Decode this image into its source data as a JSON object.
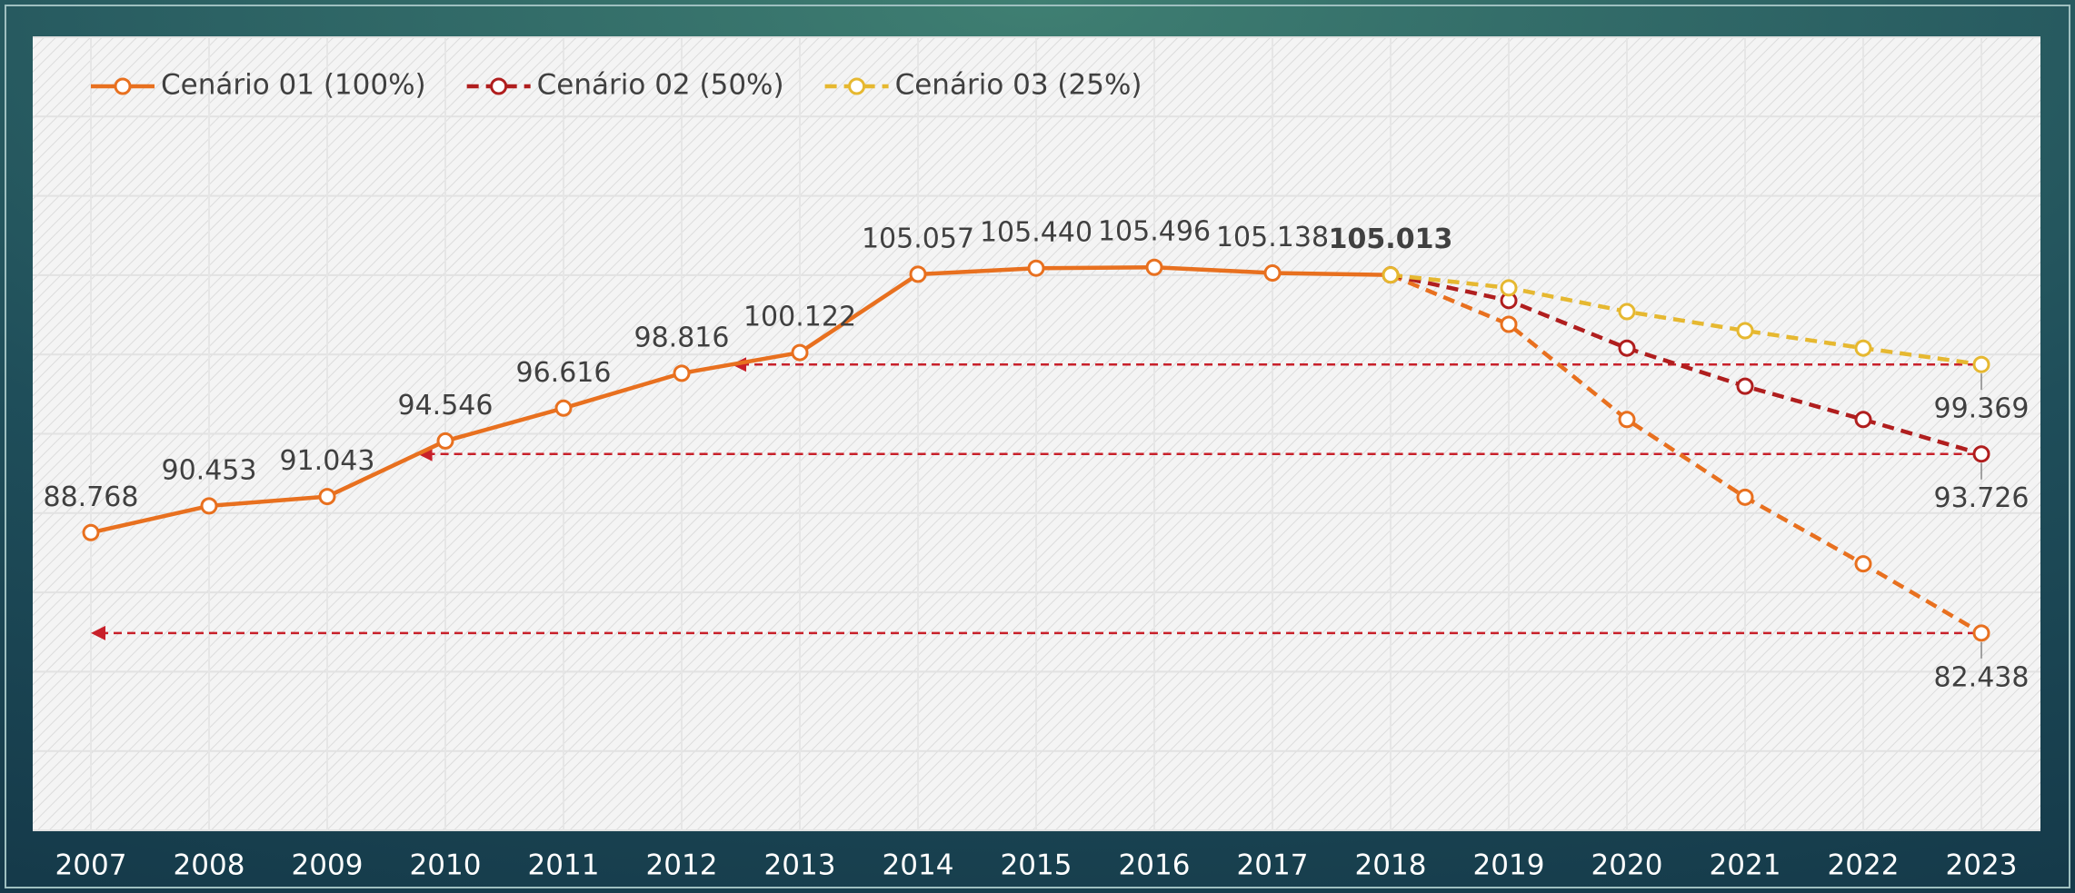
{
  "chart_data": {
    "type": "line",
    "categories": [
      "2007",
      "2008",
      "2009",
      "2010",
      "2011",
      "2012",
      "2013",
      "2014",
      "2015",
      "2016",
      "2017",
      "2018",
      "2019",
      "2020",
      "2021",
      "2022",
      "2023"
    ],
    "projection_from": "2018",
    "series": [
      {
        "name": "Cenário 01 (100%)",
        "color": "#e8701f",
        "values": [
          88.768,
          90.453,
          91.043,
          94.546,
          96.616,
          98.816,
          100.122,
          105.057,
          105.44,
          105.496,
          105.138,
          105.013,
          101.9,
          95.9,
          91.0,
          86.8,
          82.438
        ],
        "value_labels": [
          "88.768",
          "90.453",
          "91.043",
          "94.546",
          "96.616",
          "98.816",
          "100.122",
          "105.057",
          "105.440",
          "105.496",
          "105.138",
          "105.013",
          null,
          null,
          null,
          null,
          "82.438"
        ]
      },
      {
        "name": "Cenário 02 (50%)",
        "color": "#b01e1e",
        "values": [
          null,
          null,
          null,
          null,
          null,
          null,
          null,
          null,
          null,
          null,
          null,
          105.013,
          103.4,
          100.4,
          98.0,
          95.9,
          93.726
        ],
        "value_labels": [
          null,
          null,
          null,
          null,
          null,
          null,
          null,
          null,
          null,
          null,
          null,
          null,
          null,
          null,
          null,
          null,
          "93.726"
        ]
      },
      {
        "name": "Cenário 03 (25%)",
        "color": "#e6b830",
        "values": [
          null,
          null,
          null,
          null,
          null,
          null,
          null,
          null,
          null,
          null,
          null,
          105.013,
          104.2,
          102.7,
          101.5,
          100.4,
          99.369
        ],
        "value_labels": [
          null,
          null,
          null,
          null,
          null,
          null,
          null,
          null,
          null,
          null,
          null,
          null,
          null,
          null,
          null,
          null,
          "99.369"
        ]
      }
    ],
    "ylim": [
      70,
      120
    ],
    "yticks": [
      70,
      75,
      80,
      85,
      90,
      95,
      100,
      105,
      110,
      115,
      120
    ],
    "grid": true,
    "reference_color": "#c8202a"
  }
}
